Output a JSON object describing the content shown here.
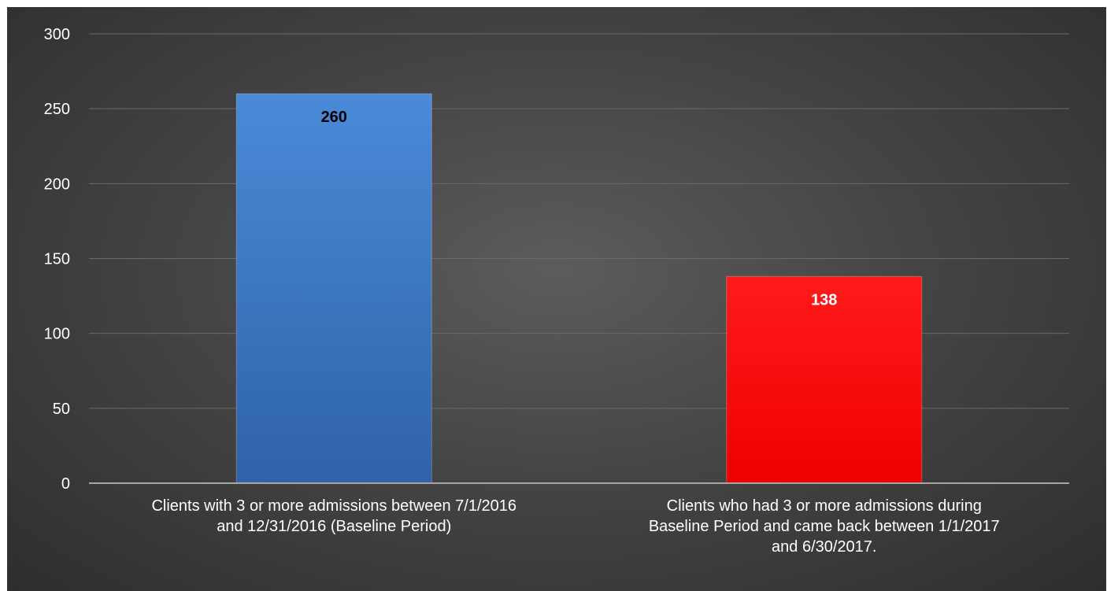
{
  "chart_data": {
    "type": "bar",
    "title": "",
    "xlabel": "",
    "ylabel": "",
    "ylim": [
      0,
      300
    ],
    "yticks": [
      0,
      50,
      100,
      150,
      200,
      250,
      300
    ],
    "grid": true,
    "categories": [
      "Clients with 3 or more admissions between 7/1/2016 and 12/31/2016 (Baseline Period)",
      "Clients who had 3 or more admissions during Baseline Period and came back between 1/1/2017 and 6/30/2017."
    ],
    "category_label_lines": [
      [
        "Clients with 3 or more admissions between 7/1/2016",
        "and 12/31/2016 (Baseline Period)"
      ],
      [
        "Clients who had 3 or more admissions during",
        "Baseline Period and came back between 1/1/2017",
        "and 6/30/2017."
      ]
    ],
    "values": [
      260,
      138
    ],
    "data_labels": [
      "260",
      "138"
    ],
    "bar_colors": [
      "#3f7cc6",
      "#ff0000"
    ],
    "data_label_colors": [
      "#000000",
      "#ffffff"
    ]
  }
}
